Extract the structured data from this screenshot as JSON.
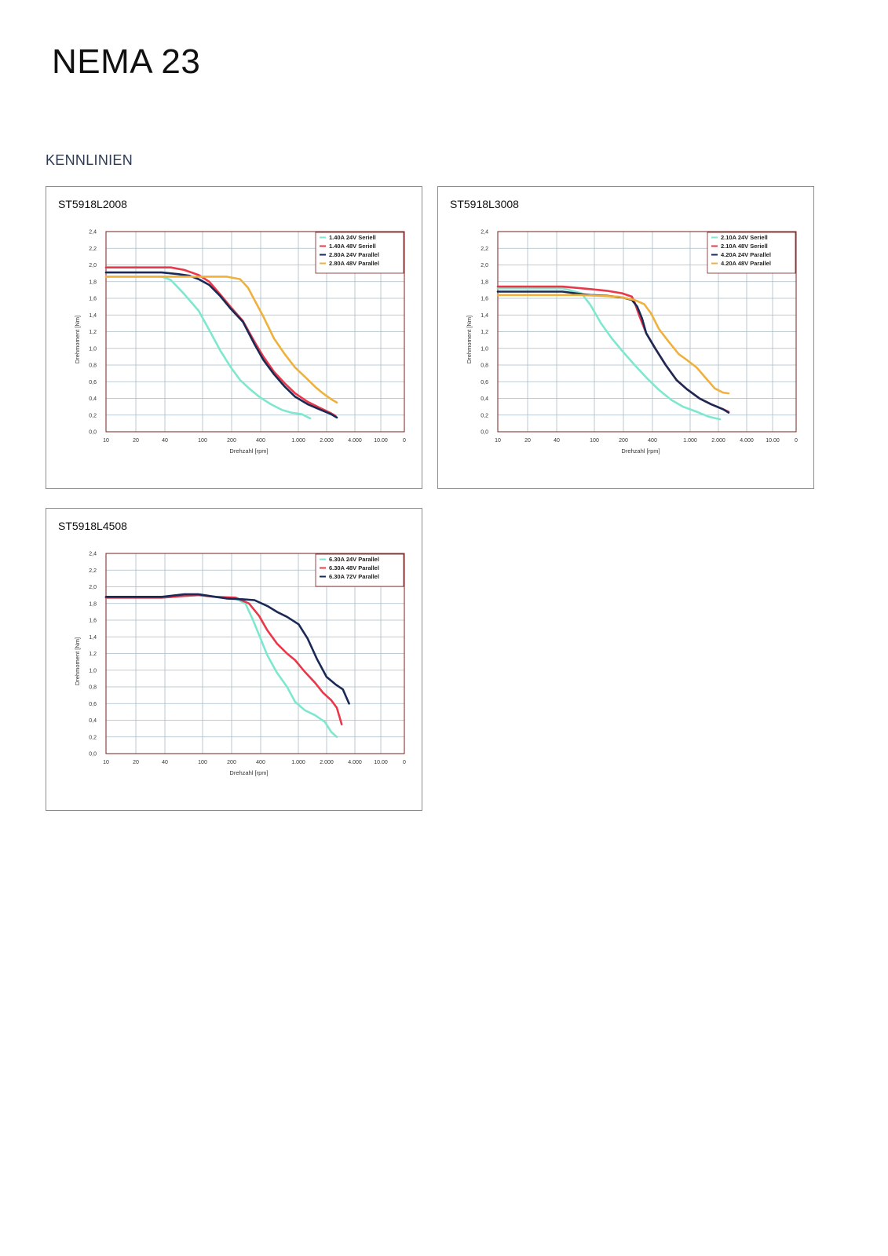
{
  "page": {
    "title": "NEMA 23",
    "section": "KENNLINIEN"
  },
  "colors": {
    "cyan": "#7ee8cf",
    "red": "#e8384a",
    "navy": "#1a2a55",
    "orange": "#f0b13c",
    "grid": "#a9bcc6",
    "frame": "#7a1f1f"
  },
  "chart_data": [
    {
      "type": "line",
      "title": "ST5918L2008",
      "xlabel": "Drehzahl [rpm]",
      "ylabel": "Drehmoment [Nm]",
      "x_ticks": [
        "10",
        "20",
        "40",
        "100",
        "200",
        "400",
        "1.000",
        "2.000",
        "4.000",
        "10.00",
        "0"
      ],
      "y_ticks": [
        "0,0",
        "0,2",
        "0,4",
        "0,6",
        "0,8",
        "1,0",
        "1,2",
        "1,4",
        "1,6",
        "1,8",
        "2,0",
        "2,2",
        "2,4"
      ],
      "ylim": [
        0,
        2.4
      ],
      "x_scale": "log",
      "legend_position": "top-right",
      "series": [
        {
          "name": "1.40A 24V Seriell",
          "color": "cyan",
          "x": [
            10,
            40,
            50,
            70,
            100,
            130,
            170,
            220,
            280,
            350,
            450,
            600,
            800,
            1000,
            1300,
            1600
          ],
          "y": [
            1.86,
            1.86,
            1.82,
            1.65,
            1.45,
            1.22,
            0.98,
            0.78,
            0.62,
            0.52,
            0.42,
            0.33,
            0.26,
            0.23,
            0.21,
            0.16
          ]
        },
        {
          "name": "1.40A 48V Seriell",
          "color": "red",
          "x": [
            10,
            50,
            70,
            100,
            130,
            170,
            220,
            300,
            400,
            500,
            650,
            850,
            1100,
            1500,
            2000,
            2700,
            3000
          ],
          "y": [
            1.97,
            1.97,
            1.94,
            1.88,
            1.8,
            1.65,
            1.5,
            1.33,
            1.08,
            0.9,
            0.72,
            0.58,
            0.46,
            0.36,
            0.29,
            0.22,
            0.19
          ]
        },
        {
          "name": "2.80A 24V Parallel",
          "color": "navy",
          "x": [
            10,
            40,
            60,
            80,
            100,
            130,
            170,
            220,
            300,
            400,
            500,
            650,
            850,
            1100,
            1500,
            2000,
            2700,
            3100
          ],
          "y": [
            1.91,
            1.91,
            1.89,
            1.87,
            1.83,
            1.76,
            1.63,
            1.48,
            1.32,
            1.05,
            0.86,
            0.69,
            0.54,
            0.42,
            0.33,
            0.27,
            0.21,
            0.17
          ]
        },
        {
          "name": "2.80A 48V Parallel",
          "color": "orange",
          "x": [
            10,
            60,
            100,
            200,
            280,
            340,
            400,
            500,
            650,
            850,
            1100,
            1400,
            1800,
            2200,
            2700,
            3100
          ],
          "y": [
            1.86,
            1.86,
            1.86,
            1.86,
            1.83,
            1.73,
            1.58,
            1.38,
            1.12,
            0.93,
            0.77,
            0.66,
            0.54,
            0.46,
            0.39,
            0.35
          ]
        }
      ]
    },
    {
      "type": "line",
      "title": "ST5918L3008",
      "xlabel": "Drehzahl [rpm]",
      "ylabel": "Drehmoment [Nm]",
      "x_ticks": [
        "10",
        "20",
        "40",
        "100",
        "200",
        "400",
        "1.000",
        "2.000",
        "4.000",
        "10.00",
        "0"
      ],
      "y_ticks": [
        "0,0",
        "0,2",
        "0,4",
        "0,6",
        "0,8",
        "1,0",
        "1,2",
        "1,4",
        "1,6",
        "1,8",
        "2,0",
        "2,2",
        "2,4"
      ],
      "ylim": [
        0,
        2.4
      ],
      "x_scale": "log",
      "legend_position": "top-right",
      "series": [
        {
          "name": "2.10A 24V Seriell",
          "color": "cyan",
          "x": [
            10,
            50,
            80,
            100,
            130,
            170,
            220,
            300,
            400,
            550,
            750,
            1000,
            1400,
            1900,
            2500
          ],
          "y": [
            1.72,
            1.72,
            1.66,
            1.52,
            1.3,
            1.12,
            0.97,
            0.8,
            0.65,
            0.5,
            0.38,
            0.3,
            0.24,
            0.18,
            0.15
          ]
        },
        {
          "name": "2.10A 48V Seriell",
          "color": "red",
          "x": [
            10,
            50,
            100,
            150,
            220,
            280,
            300,
            340,
            400,
            500,
            650,
            850,
            1100,
            1500,
            2000,
            2700,
            3100
          ],
          "y": [
            1.74,
            1.74,
            1.71,
            1.69,
            1.66,
            1.62,
            1.55,
            1.38,
            1.18,
            1.0,
            0.8,
            0.62,
            0.51,
            0.4,
            0.33,
            0.27,
            0.24
          ]
        },
        {
          "name": "4.20A 24V Parallel",
          "color": "navy",
          "x": [
            10,
            50,
            80,
            100,
            150,
            220,
            280,
            320,
            360,
            400,
            500,
            650,
            850,
            1100,
            1500,
            2000,
            2700,
            3100
          ],
          "y": [
            1.68,
            1.68,
            1.65,
            1.64,
            1.63,
            1.61,
            1.58,
            1.5,
            1.36,
            1.18,
            1.0,
            0.8,
            0.62,
            0.51,
            0.4,
            0.33,
            0.27,
            0.23
          ]
        },
        {
          "name": "4.20A 48V Parallel",
          "color": "orange",
          "x": [
            10,
            80,
            200,
            300,
            380,
            450,
            550,
            700,
            900,
            1100,
            1400,
            1800,
            2200,
            2700,
            3100
          ],
          "y": [
            1.64,
            1.64,
            1.62,
            1.58,
            1.53,
            1.42,
            1.23,
            1.08,
            0.93,
            0.86,
            0.77,
            0.63,
            0.52,
            0.47,
            0.46
          ]
        }
      ]
    },
    {
      "type": "line",
      "title": "ST5918L4508",
      "xlabel": "Drehzahl [rpm]",
      "ylabel": "Drehmoment [Nm]",
      "x_ticks": [
        "10",
        "20",
        "40",
        "100",
        "200",
        "400",
        "1.000",
        "2.000",
        "4.000",
        "10.00",
        "0"
      ],
      "y_ticks": [
        "0,0",
        "0,2",
        "0,4",
        "0,6",
        "0,8",
        "1,0",
        "1,2",
        "1,4",
        "1,6",
        "1,8",
        "2,0",
        "2,2",
        "2,4"
      ],
      "ylim": [
        0,
        2.4
      ],
      "x_scale": "log",
      "legend_position": "top-right",
      "series": [
        {
          "name": "6.30A 24V Parallel",
          "color": "cyan",
          "x": [
            10,
            40,
            70,
            100,
            150,
            250,
            320,
            380,
            450,
            550,
            700,
            900,
            1100,
            1400,
            1800,
            2300,
            2700,
            3100
          ],
          "y": [
            1.87,
            1.87,
            1.89,
            1.9,
            1.88,
            1.86,
            1.8,
            1.62,
            1.42,
            1.18,
            0.97,
            0.8,
            0.62,
            0.52,
            0.46,
            0.38,
            0.26,
            0.2
          ]
        },
        {
          "name": "6.30A 48V Parallel",
          "color": "red",
          "x": [
            10,
            40,
            70,
            100,
            150,
            250,
            350,
            450,
            550,
            700,
            900,
            1100,
            1400,
            1800,
            2200,
            2700,
            3100,
            3500
          ],
          "y": [
            1.87,
            1.87,
            1.89,
            1.9,
            1.88,
            1.87,
            1.8,
            1.65,
            1.48,
            1.32,
            1.2,
            1.12,
            0.98,
            0.85,
            0.73,
            0.64,
            0.55,
            0.35
          ]
        },
        {
          "name": "6.30A 72V Parallel",
          "color": "navy",
          "x": [
            10,
            40,
            70,
            100,
            200,
            300,
            400,
            550,
            700,
            900,
            1200,
            1500,
            1900,
            2400,
            3000,
            3600,
            4200
          ],
          "y": [
            1.88,
            1.88,
            1.91,
            1.91,
            1.86,
            1.85,
            1.84,
            1.77,
            1.7,
            1.64,
            1.55,
            1.38,
            1.13,
            0.92,
            0.83,
            0.77,
            0.6
          ]
        }
      ]
    }
  ]
}
